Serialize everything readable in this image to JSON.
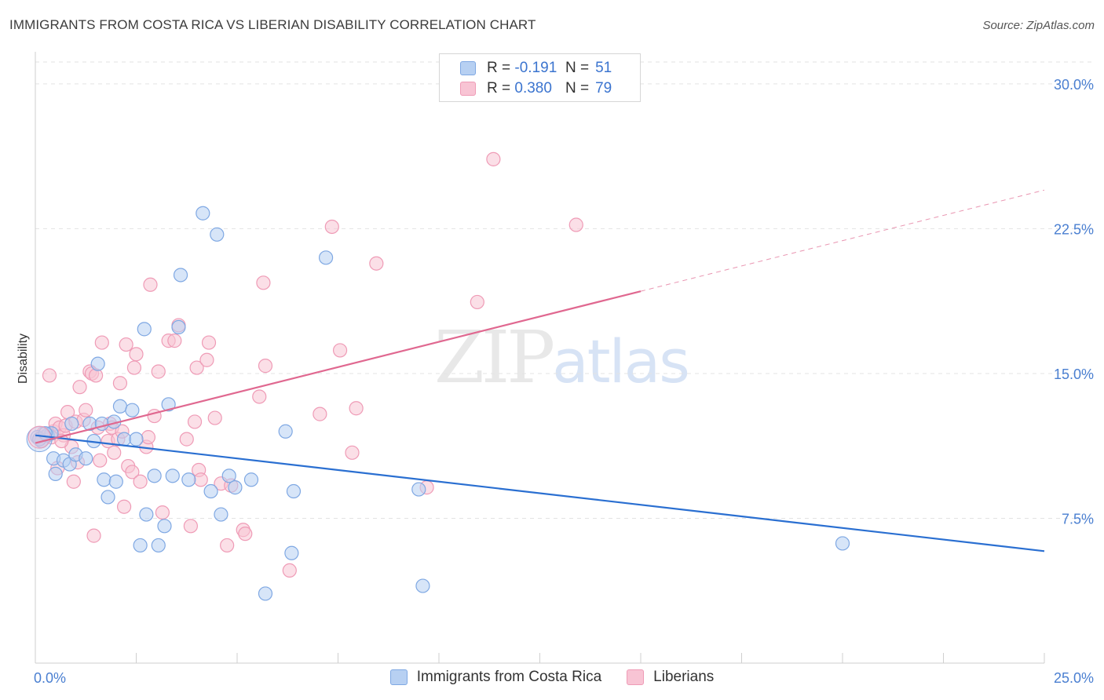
{
  "header": {
    "title": "IMMIGRANTS FROM COSTA RICA VS LIBERIAN DISABILITY CORRELATION CHART",
    "source": "Source: ZipAtlas.com"
  },
  "watermark": {
    "zip": "ZIP",
    "atlas": "atlas"
  },
  "legend_top": {
    "rows": [
      {
        "r_label": "R =",
        "r_value": "-0.191",
        "n_label": "N =",
        "n_value": "51"
      },
      {
        "r_label": "R =",
        "r_value": "0.380",
        "n_label": "N =",
        "n_value": "79"
      }
    ]
  },
  "legend_bottom": {
    "items": [
      {
        "label": "Immigrants from Costa Rica"
      },
      {
        "label": "Liberians"
      }
    ]
  },
  "colors": {
    "blue_fill": "#b7d0f2",
    "blue_stroke": "#7fa8e3",
    "blue_line": "#2a6fd1",
    "pink_fill": "#f8c4d4",
    "pink_stroke": "#ef9bb6",
    "pink_line": "#e06890",
    "grid": "#e3e3e3",
    "tick_label": "#4a7fd1"
  },
  "chart_data": {
    "type": "scatter",
    "title": "IMMIGRANTS FROM COSTA RICA VS LIBERIAN DISABILITY CORRELATION CHART",
    "xlabel": "",
    "ylabel": "Disability",
    "xlim": [
      0,
      25
    ],
    "ylim": [
      0,
      31.5
    ],
    "x_tick_labels": [
      "0.0%",
      "25.0%"
    ],
    "y_ticks": [
      7.5,
      15.0,
      22.5,
      30.0
    ],
    "y_tick_labels": [
      "7.5%",
      "15.0%",
      "22.5%",
      "30.0%"
    ],
    "grid": "horizontal dashed",
    "series": [
      {
        "name": "Immigrants from Costa Rica",
        "color": "#7fa8e3",
        "stats": {
          "R": -0.191,
          "N": 51
        },
        "trend": {
          "x0": 0.0,
          "y0": 11.8,
          "x1": 25.0,
          "y1": 5.8,
          "dashed_from": null
        },
        "points": [
          [
            0.05,
            11.7
          ],
          [
            0.15,
            11.5
          ],
          [
            0.3,
            11.8
          ],
          [
            0.4,
            11.9
          ],
          [
            0.45,
            10.6
          ],
          [
            0.5,
            9.8
          ],
          [
            0.7,
            10.5
          ],
          [
            0.85,
            10.3
          ],
          [
            0.9,
            12.4
          ],
          [
            1.0,
            10.8
          ],
          [
            1.25,
            10.6
          ],
          [
            1.35,
            12.4
          ],
          [
            1.45,
            11.5
          ],
          [
            1.55,
            15.5
          ],
          [
            1.65,
            12.4
          ],
          [
            1.7,
            9.5
          ],
          [
            1.8,
            8.6
          ],
          [
            1.95,
            12.5
          ],
          [
            2.0,
            9.4
          ],
          [
            2.1,
            13.3
          ],
          [
            2.2,
            11.6
          ],
          [
            2.4,
            13.1
          ],
          [
            2.5,
            11.6
          ],
          [
            2.6,
            6.1
          ],
          [
            2.7,
            17.3
          ],
          [
            2.75,
            7.7
          ],
          [
            2.95,
            9.7
          ],
          [
            3.05,
            6.1
          ],
          [
            3.2,
            7.1
          ],
          [
            3.3,
            13.4
          ],
          [
            3.4,
            9.7
          ],
          [
            3.55,
            17.4
          ],
          [
            3.6,
            20.1
          ],
          [
            3.8,
            9.5
          ],
          [
            4.15,
            23.3
          ],
          [
            4.35,
            8.9
          ],
          [
            4.5,
            22.2
          ],
          [
            4.6,
            7.7
          ],
          [
            4.8,
            9.7
          ],
          [
            4.95,
            9.1
          ],
          [
            5.35,
            9.5
          ],
          [
            5.7,
            3.6
          ],
          [
            6.2,
            12.0
          ],
          [
            6.35,
            5.7
          ],
          [
            6.4,
            8.9
          ],
          [
            7.2,
            21.0
          ],
          [
            9.5,
            9.0
          ],
          [
            9.6,
            4.0
          ],
          [
            20.0,
            6.2
          ],
          [
            0.1,
            11.6
          ],
          [
            0.25,
            11.9
          ]
        ]
      },
      {
        "name": "Liberians",
        "color": "#ef9bb6",
        "stats": {
          "R": 0.38,
          "N": 79
        },
        "trend": {
          "x0": 0.0,
          "y0": 11.4,
          "x1": 25.0,
          "y1": 24.5,
          "solid_until_x": 15.0
        },
        "points": [
          [
            0.1,
            11.6
          ],
          [
            0.2,
            11.9
          ],
          [
            0.3,
            11.8
          ],
          [
            0.35,
            14.9
          ],
          [
            0.45,
            12.0
          ],
          [
            0.5,
            12.4
          ],
          [
            0.55,
            10.1
          ],
          [
            0.6,
            12.2
          ],
          [
            0.7,
            11.8
          ],
          [
            0.75,
            12.3
          ],
          [
            0.8,
            13.0
          ],
          [
            0.9,
            11.2
          ],
          [
            0.95,
            9.4
          ],
          [
            1.0,
            12.5
          ],
          [
            1.05,
            10.4
          ],
          [
            1.1,
            14.3
          ],
          [
            1.2,
            12.6
          ],
          [
            1.25,
            13.1
          ],
          [
            1.35,
            15.1
          ],
          [
            1.4,
            15.0
          ],
          [
            1.45,
            6.6
          ],
          [
            1.5,
            14.9
          ],
          [
            1.55,
            12.2
          ],
          [
            1.6,
            10.5
          ],
          [
            1.65,
            16.6
          ],
          [
            1.8,
            11.5
          ],
          [
            1.85,
            12.4
          ],
          [
            1.9,
            12.2
          ],
          [
            1.95,
            10.9
          ],
          [
            2.05,
            11.6
          ],
          [
            2.1,
            14.5
          ],
          [
            2.15,
            12.0
          ],
          [
            2.2,
            8.1
          ],
          [
            2.25,
            16.5
          ],
          [
            2.3,
            10.2
          ],
          [
            2.4,
            9.9
          ],
          [
            2.45,
            15.3
          ],
          [
            2.5,
            16.0
          ],
          [
            2.6,
            9.4
          ],
          [
            2.75,
            11.2
          ],
          [
            2.8,
            11.7
          ],
          [
            2.85,
            19.6
          ],
          [
            2.95,
            12.8
          ],
          [
            3.05,
            15.1
          ],
          [
            3.15,
            7.8
          ],
          [
            3.3,
            16.7
          ],
          [
            3.45,
            16.7
          ],
          [
            3.55,
            17.5
          ],
          [
            3.75,
            11.6
          ],
          [
            3.85,
            7.1
          ],
          [
            3.95,
            12.5
          ],
          [
            4.0,
            15.3
          ],
          [
            4.05,
            10.0
          ],
          [
            4.1,
            9.5
          ],
          [
            4.25,
            15.7
          ],
          [
            4.3,
            16.6
          ],
          [
            4.45,
            12.7
          ],
          [
            4.6,
            9.3
          ],
          [
            4.75,
            6.1
          ],
          [
            4.85,
            9.2
          ],
          [
            5.15,
            6.9
          ],
          [
            5.2,
            6.7
          ],
          [
            5.55,
            13.8
          ],
          [
            5.65,
            19.7
          ],
          [
            5.7,
            15.4
          ],
          [
            6.3,
            4.8
          ],
          [
            7.05,
            12.9
          ],
          [
            7.35,
            22.6
          ],
          [
            7.55,
            16.2
          ],
          [
            7.85,
            10.9
          ],
          [
            7.95,
            13.2
          ],
          [
            8.45,
            20.7
          ],
          [
            9.7,
            9.1
          ],
          [
            10.95,
            18.7
          ],
          [
            11.35,
            26.1
          ],
          [
            13.4,
            22.7
          ],
          [
            0.15,
            11.5
          ],
          [
            0.4,
            11.7
          ],
          [
            0.65,
            11.5
          ]
        ]
      }
    ]
  }
}
